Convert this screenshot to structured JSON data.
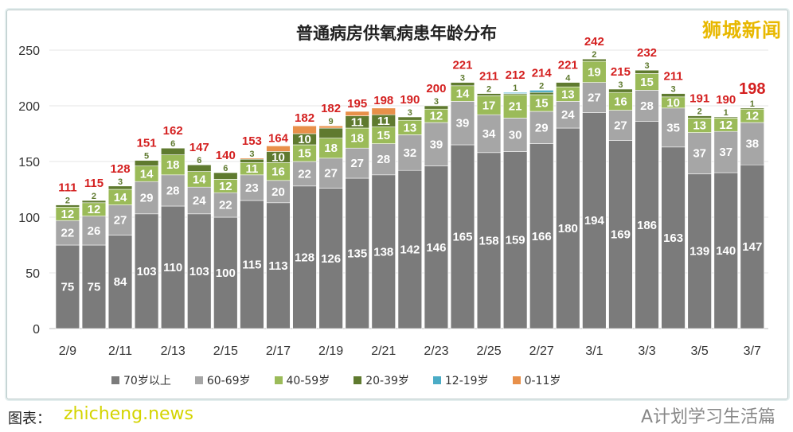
{
  "chart_data": {
    "type": "bar",
    "stacked": true,
    "title": "普通病房供氧病患年龄分布",
    "xlabel": "",
    "ylabel": "",
    "ylim": [
      0,
      250
    ],
    "yticks": [
      0,
      50,
      100,
      150,
      200,
      250
    ],
    "grid": true,
    "legend_position": "bottom",
    "categories": [
      "2/9",
      "2/10",
      "2/11",
      "2/12",
      "2/13",
      "2/14",
      "2/15",
      "2/16",
      "2/17",
      "2/18",
      "2/19",
      "2/20",
      "2/21",
      "2/22",
      "2/23",
      "2/24",
      "2/25",
      "2/26",
      "2/27",
      "2/28",
      "3/1",
      "3/2",
      "3/3",
      "3/4",
      "3/5",
      "3/6",
      "3/7"
    ],
    "xtick_labels": [
      "2/9",
      "",
      "2/11",
      "",
      "2/13",
      "",
      "2/15",
      "",
      "2/17",
      "",
      "2/19",
      "",
      "2/21",
      "",
      "2/23",
      "",
      "2/25",
      "",
      "2/27",
      "",
      "3/1",
      "",
      "3/3",
      "",
      "3/5",
      "",
      "3/7"
    ],
    "series": [
      {
        "name": "70岁以上",
        "color": "#7b7b7b",
        "values": [
          75,
          75,
          84,
          103,
          110,
          103,
          100,
          115,
          113,
          128,
          126,
          135,
          138,
          142,
          146,
          165,
          158,
          159,
          166,
          180,
          194,
          169,
          186,
          163,
          139,
          140,
          147
        ]
      },
      {
        "name": "60-69岁",
        "color": "#a6a6a6",
        "values": [
          22,
          26,
          27,
          29,
          28,
          24,
          22,
          23,
          20,
          22,
          27,
          27,
          28,
          32,
          39,
          39,
          34,
          30,
          29,
          24,
          27,
          27,
          28,
          35,
          37,
          37,
          38
        ]
      },
      {
        "name": "40-59岁",
        "color": "#9bbb59",
        "values": [
          12,
          12,
          14,
          14,
          18,
          14,
          12,
          11,
          16,
          15,
          18,
          18,
          15,
          13,
          12,
          14,
          17,
          21,
          15,
          13,
          19,
          16,
          15,
          10,
          13,
          12,
          12
        ]
      },
      {
        "name": "20-39岁",
        "color": "#5f7a2f",
        "values": [
          2,
          2,
          3,
          5,
          6,
          6,
          6,
          3,
          10,
          10,
          9,
          11,
          11,
          3,
          3,
          3,
          2,
          1,
          2,
          4,
          2,
          3,
          3,
          3,
          2,
          1,
          1
        ]
      },
      {
        "name": "12-19岁",
        "color": "#4bacc6",
        "values": [
          0,
          0,
          0,
          0,
          0,
          0,
          0,
          0,
          0,
          0,
          0,
          0,
          0,
          0,
          0,
          0,
          0,
          1,
          2,
          0,
          0,
          0,
          0,
          0,
          0,
          0,
          0
        ]
      },
      {
        "name": "0-11岁",
        "color": "#e8904a",
        "values": [
          0,
          0,
          0,
          0,
          0,
          0,
          0,
          1,
          5,
          7,
          2,
          4,
          6,
          0,
          0,
          0,
          0,
          0,
          0,
          0,
          0,
          0,
          0,
          0,
          0,
          0,
          0
        ]
      }
    ],
    "totals": [
      111,
      115,
      128,
      151,
      162,
      147,
      140,
      153,
      164,
      182,
      182,
      195,
      198,
      190,
      200,
      221,
      211,
      212,
      214,
      221,
      242,
      215,
      232,
      211,
      191,
      190,
      198
    ]
  },
  "watermarks": {
    "top_right": "狮城新闻",
    "bottom_right": "A计划学习生活篇",
    "bottom_left": "zhicheng.news"
  },
  "caption": "图表："
}
